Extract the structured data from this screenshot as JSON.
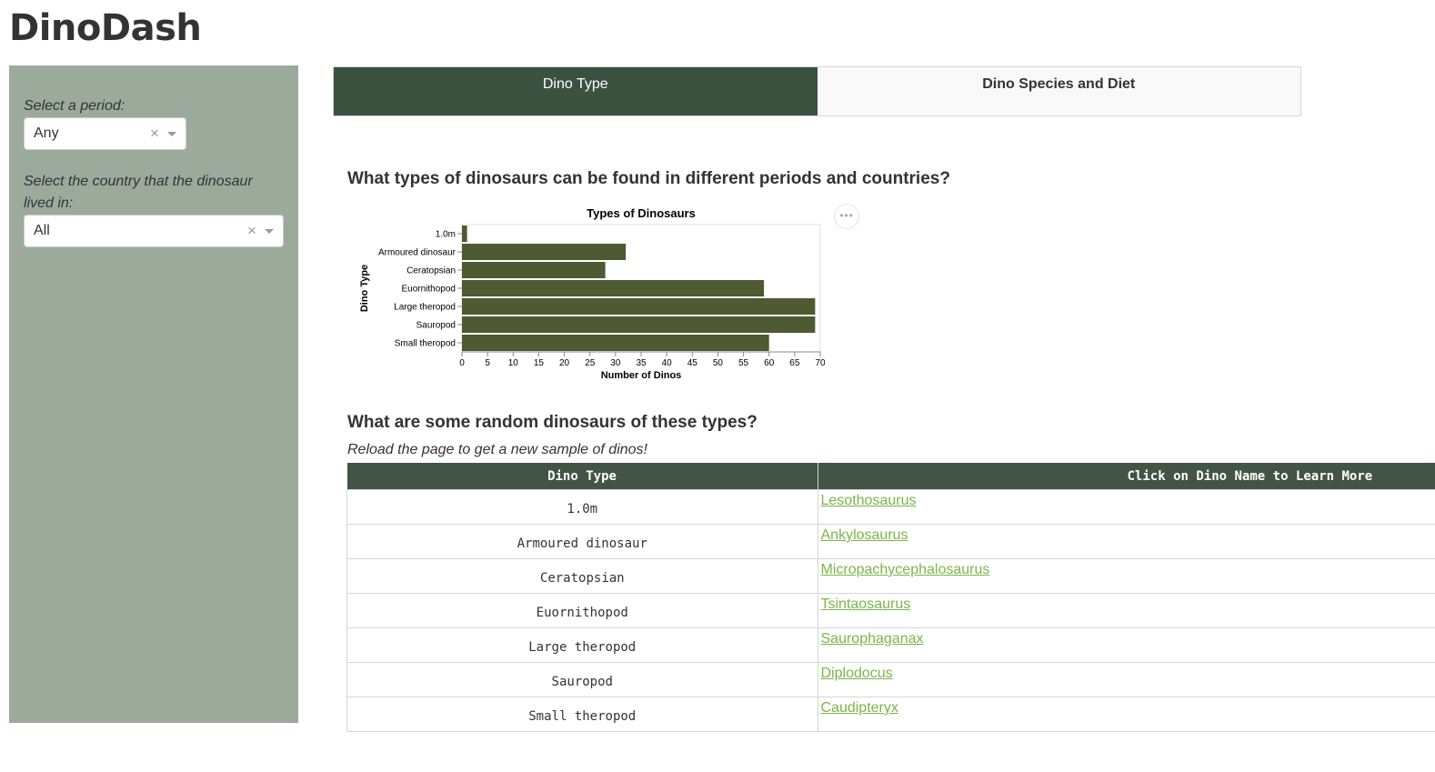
{
  "app": {
    "title": "DinoDash"
  },
  "sidebar": {
    "period_label": "Select a period:",
    "period_value": "Any",
    "country_label": "Select the country that the dinosaur lived in:",
    "country_value": "All",
    "background_color": "#9caa9c"
  },
  "tabs": [
    {
      "label": "Dino Type",
      "active": true
    },
    {
      "label": "Dino Species and Diet",
      "active": false
    }
  ],
  "main": {
    "heading_types": "What types of dinosaurs can be found in different periods and countries?",
    "heading_random": "What are some random dinosaurs of these types?",
    "reload_note": "Reload the page to get a new sample of dinos!",
    "actions_icon": "•••"
  },
  "chart_data": {
    "type": "bar",
    "orientation": "horizontal",
    "title": "Types of Dinosaurs",
    "xlabel": "Number of Dinos",
    "ylabel": "Dino Type",
    "categories": [
      "1.0m",
      "Armoured dinosaur",
      "Ceratopsian",
      "Euornithopod",
      "Large theropod",
      "Sauropod",
      "Small theropod"
    ],
    "values": [
      1,
      32,
      28,
      59,
      69,
      69,
      60
    ],
    "xlim": [
      0,
      70
    ],
    "xticks": [
      0,
      5,
      10,
      15,
      20,
      25,
      30,
      35,
      40,
      45,
      50,
      55,
      60,
      65,
      70
    ],
    "grid": false,
    "bar_color": "#4e5a31"
  },
  "table": {
    "headers": [
      "Dino Type",
      "Click on Dino Name to Learn More"
    ],
    "rows": [
      {
        "type": "1.0m",
        "name": "Lesothosaurus"
      },
      {
        "type": "Armoured dinosaur",
        "name": "Ankylosaurus"
      },
      {
        "type": "Ceratopsian",
        "name": "Micropachycephalosaurus"
      },
      {
        "type": "Euornithopod",
        "name": "Tsintaosaurus"
      },
      {
        "type": "Large theropod",
        "name": "Saurophaganax"
      },
      {
        "type": "Sauropod",
        "name": "Diplodocus"
      },
      {
        "type": "Small theropod",
        "name": "Caudipteryx"
      }
    ],
    "header_color": "#425443",
    "link_color": "#7ab648"
  }
}
